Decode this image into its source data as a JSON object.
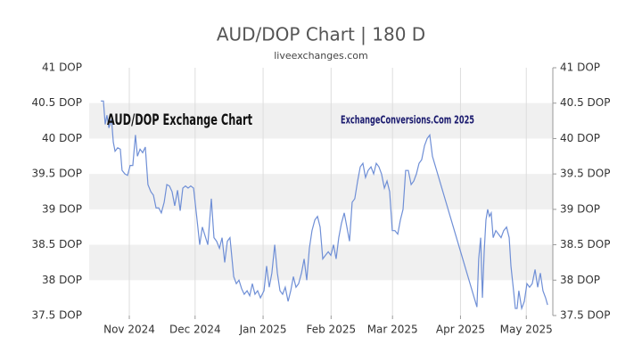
{
  "chart_data": {
    "type": "line",
    "title": "AUD/DOP Chart | 180 D",
    "subtitle": "liveexchanges.com",
    "annotations": [
      "AUD/DOP Exchange Chart",
      "ExchangeConversions.Com 2025"
    ],
    "x": [
      -13.0,
      -11.8,
      -11.0,
      -10.2,
      -9.3,
      -8.1,
      -7.3,
      -6.5,
      -5.3,
      -4.1,
      -3.3,
      -2.0,
      -0.8,
      0.4,
      1.6,
      2.8,
      3.7,
      4.9,
      6.1,
      7.3,
      8.5,
      9.8,
      11.0,
      12.2,
      13.4,
      14.6,
      15.9,
      17.1,
      18.3,
      19.5,
      20.7,
      22.0,
      23.2,
      24.4,
      25.6,
      26.8,
      28.0,
      29.3,
      30.9,
      32.1,
      33.3,
      35.8,
      37.4,
      38.6,
      39.8,
      41.1,
      42.3,
      43.5,
      44.7,
      45.9,
      47.6,
      48.8,
      50.0,
      51.2,
      52.4,
      53.7,
      54.9,
      56.1,
      57.3,
      58.5,
      59.8,
      61.4,
      62.6,
      63.8,
      65.0,
      66.3,
      67.5,
      68.7,
      69.9,
      71.1,
      72.4,
      73.6,
      74.8,
      76.0,
      77.2,
      78.5,
      79.7,
      80.9,
      82.1,
      83.3,
      84.6,
      85.8,
      87.0,
      88.2,
      89.4,
      90.7,
      91.9,
      93.1,
      94.3,
      95.5,
      96.7,
      98.0,
      99.2,
      100.4,
      101.6,
      102.8,
      104.1,
      105.3,
      106.5,
      107.7,
      108.9,
      110.2,
      111.4,
      112.6,
      113.8,
      115.0,
      116.3,
      117.5,
      118.7,
      119.9,
      121.1,
      122.4,
      123.6,
      124.8,
      126.0,
      127.2,
      128.5,
      129.7,
      130.9,
      132.1,
      133.3,
      134.6,
      135.8,
      137.0,
      138.2,
      158.5,
      159.3,
      160.2,
      161.0,
      161.8,
      162.6,
      163.4,
      164.2,
      165.0,
      165.9,
      167.1,
      168.3,
      169.5,
      170.7,
      172.0,
      173.2,
      174.0,
      175.2,
      176.0,
      176.8,
      177.6,
      178.9,
      180.1,
      181.3,
      182.5,
      183.7,
      185.0,
      186.2,
      187.4,
      188.6,
      189.8,
      190.7
    ],
    "series": [
      {
        "name": "AUD/DOP",
        "color": "#6f8fd6",
        "values": [
          40.53,
          40.53,
          40.2,
          40.33,
          40.15,
          40.27,
          39.95,
          39.82,
          39.87,
          39.85,
          39.55,
          39.5,
          39.48,
          39.62,
          39.62,
          40.05,
          39.75,
          39.85,
          39.8,
          39.88,
          39.35,
          39.25,
          39.2,
          39.02,
          39.02,
          38.95,
          39.1,
          39.35,
          39.33,
          39.25,
          39.05,
          39.27,
          38.98,
          39.3,
          39.33,
          39.3,
          39.33,
          39.3,
          38.85,
          38.5,
          38.75,
          38.5,
          39.15,
          38.6,
          38.55,
          38.45,
          38.6,
          38.25,
          38.55,
          38.6,
          38.05,
          37.95,
          38.0,
          37.88,
          37.8,
          37.85,
          37.78,
          37.95,
          37.8,
          37.85,
          37.75,
          37.85,
          38.2,
          37.9,
          38.1,
          38.5,
          38.1,
          37.85,
          37.8,
          37.9,
          37.7,
          37.85,
          38.05,
          37.9,
          37.95,
          38.1,
          38.3,
          38.0,
          38.45,
          38.7,
          38.85,
          38.9,
          38.75,
          38.3,
          38.35,
          38.4,
          38.35,
          38.5,
          38.3,
          38.6,
          38.8,
          38.95,
          38.75,
          38.55,
          39.1,
          39.15,
          39.4,
          39.6,
          39.65,
          39.45,
          39.55,
          39.6,
          39.5,
          39.65,
          39.6,
          39.5,
          39.3,
          39.4,
          39.25,
          38.7,
          38.7,
          38.65,
          38.85,
          39.0,
          39.55,
          39.55,
          39.35,
          39.4,
          39.5,
          39.65,
          39.7,
          39.9,
          40.0,
          40.05,
          39.75,
          37.62,
          38.3,
          38.6,
          37.75,
          38.4,
          38.85,
          39.0,
          38.9,
          38.95,
          38.6,
          38.7,
          38.65,
          38.6,
          38.7,
          38.75,
          38.6,
          38.2,
          37.85,
          37.6,
          37.6,
          37.85,
          37.6,
          37.7,
          37.95,
          37.9,
          37.95,
          38.15,
          37.9,
          38.1,
          37.85,
          37.75,
          37.65
        ]
      }
    ],
    "xlim": [
      -18.3,
      193.1
    ],
    "xticks": [
      {
        "value": 0,
        "label": "Nov 2024"
      },
      {
        "value": 30,
        "label": "Dec 2024"
      },
      {
        "value": 61,
        "label": "Jan 2025"
      },
      {
        "value": 92,
        "label": "Feb 2025"
      },
      {
        "value": 120,
        "label": "Mar 2025"
      },
      {
        "value": 151,
        "label": "Apr 2025"
      },
      {
        "value": 181,
        "label": "May 2025"
      }
    ],
    "ylim": [
      37.5,
      41
    ],
    "yticks": [
      {
        "value": 37.5,
        "label": "37.5 DOP"
      },
      {
        "value": 38,
        "label": "38 DOP"
      },
      {
        "value": 38.5,
        "label": "38.5 DOP"
      },
      {
        "value": 39,
        "label": "39 DOP"
      },
      {
        "value": 39.5,
        "label": "39.5 DOP"
      },
      {
        "value": 40,
        "label": "40 DOP"
      },
      {
        "value": 40.5,
        "label": "40.5 DOP"
      },
      {
        "value": 41,
        "label": "41 DOP"
      }
    ],
    "grid": true
  }
}
